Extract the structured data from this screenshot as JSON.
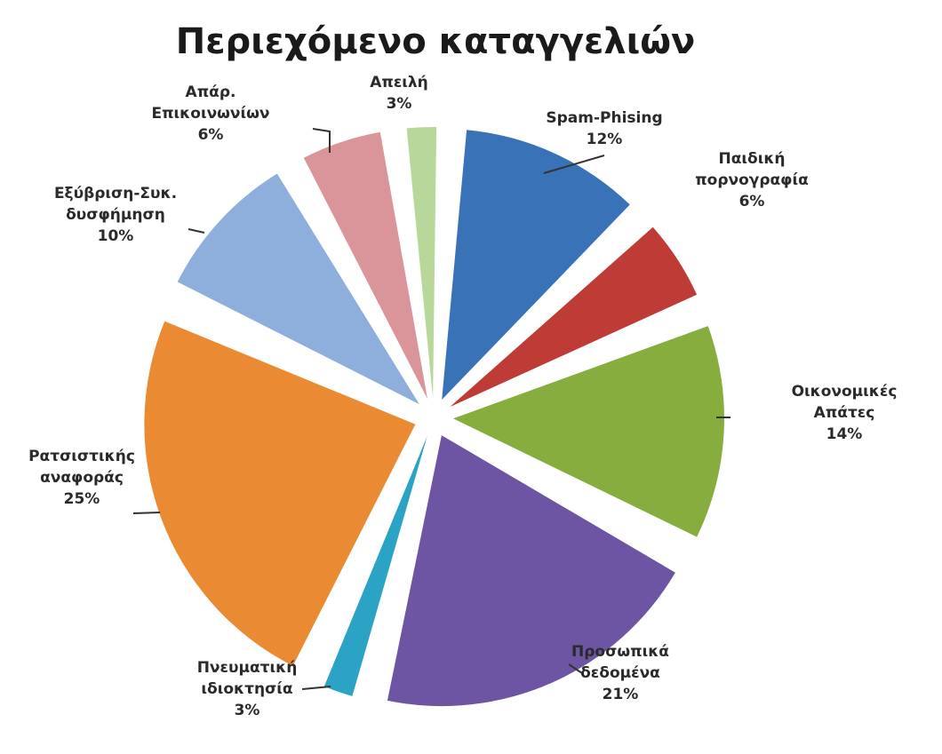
{
  "chart_data": {
    "type": "pie",
    "title": "Περιεχόμενο καταγγελιών",
    "slices": [
      {
        "label": "Spam-Phising",
        "value": 12,
        "pct_label": "12%",
        "color": "#3a72b8"
      },
      {
        "label": "Παιδική πορνογραφία",
        "value": 6,
        "pct_label": "6%",
        "color": "#bf3b36"
      },
      {
        "label": "Οικονομικές Απάτες",
        "value": 14,
        "pct_label": "14%",
        "color": "#86ad3d"
      },
      {
        "label": "Προσωπικά δεδομένα",
        "value": 21,
        "pct_label": "21%",
        "color": "#6e55a3"
      },
      {
        "label": "Πνευματική ιδιοκτησία",
        "value": 3,
        "pct_label": "3%",
        "color": "#2ba3c4"
      },
      {
        "label": "Ρατσιστικής αναφοράς",
        "value": 25,
        "pct_label": "25%",
        "color": "#ea8a32"
      },
      {
        "label": "Εξύβριση-Συκ. δυσφήμηση",
        "value": 10,
        "pct_label": "10%",
        "color": "#8eaedb"
      },
      {
        "label": "Απάρ. Επικοινωνίων",
        "value": 6,
        "pct_label": "6%",
        "color": "#d9959a"
      },
      {
        "label": "Απειλή",
        "value": 3,
        "pct_label": "3%",
        "color": "#b7d89a"
      }
    ]
  }
}
